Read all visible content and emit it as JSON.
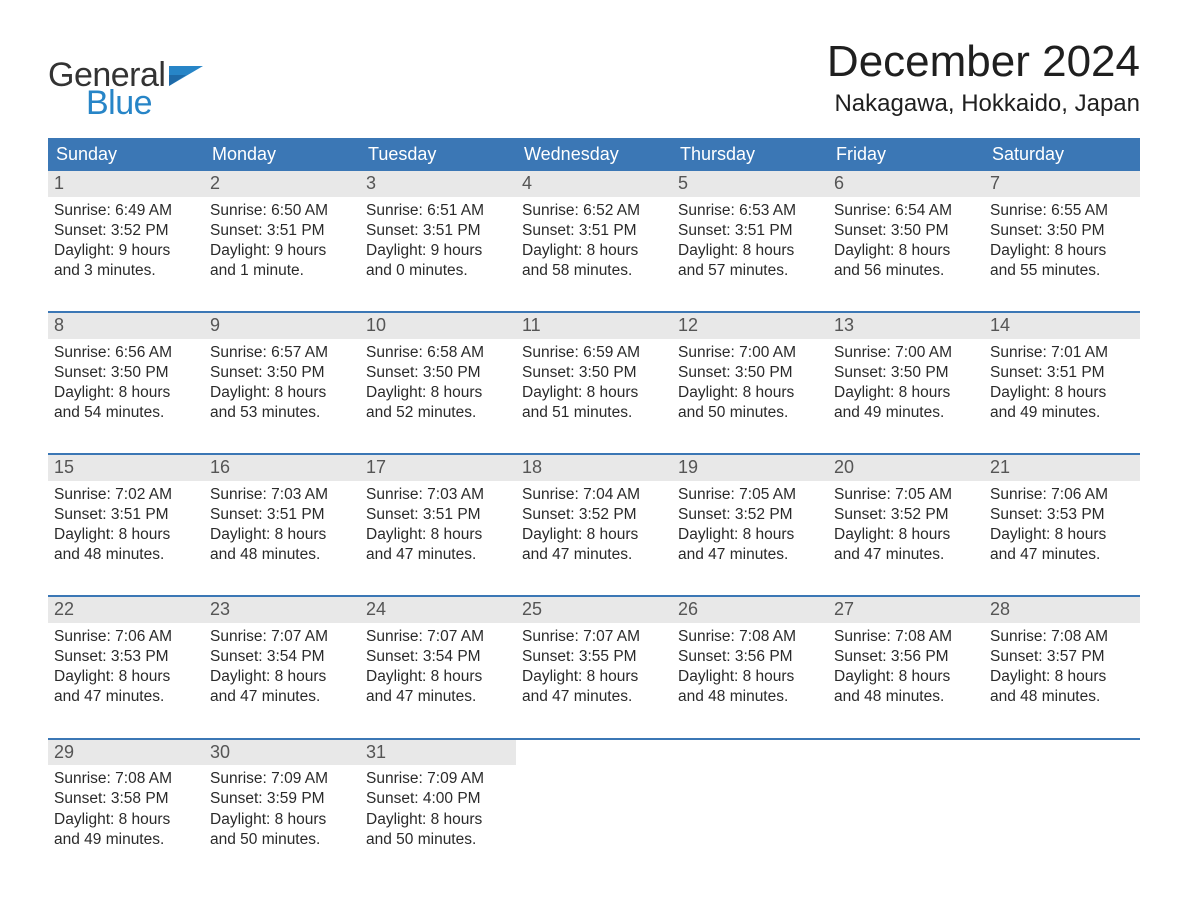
{
  "brand": {
    "word1": "General",
    "word2": "Blue",
    "flag_color": "#2785c7"
  },
  "title": "December 2024",
  "location": "Nakagawa, Hokkaido, Japan",
  "colors": {
    "header_bg": "#3b77b5",
    "header_text": "#ffffff",
    "accent": "#2785c7",
    "daynum_bg": "#e8e8e8",
    "week_border": "#3b77b5",
    "page_bg": "#ffffff",
    "text": "#222222"
  },
  "layout": {
    "columns": 7,
    "rows": 5
  },
  "weekdays": [
    "Sunday",
    "Monday",
    "Tuesday",
    "Wednesday",
    "Thursday",
    "Friday",
    "Saturday"
  ],
  "labels": {
    "sunrise": "Sunrise:",
    "sunset": "Sunset:",
    "daylight": "Daylight:"
  },
  "days": [
    {
      "n": 1,
      "sunrise": "6:49 AM",
      "sunset": "3:52 PM",
      "dl1": "9 hours",
      "dl2": "and 3 minutes."
    },
    {
      "n": 2,
      "sunrise": "6:50 AM",
      "sunset": "3:51 PM",
      "dl1": "9 hours",
      "dl2": "and 1 minute."
    },
    {
      "n": 3,
      "sunrise": "6:51 AM",
      "sunset": "3:51 PM",
      "dl1": "9 hours",
      "dl2": "and 0 minutes."
    },
    {
      "n": 4,
      "sunrise": "6:52 AM",
      "sunset": "3:51 PM",
      "dl1": "8 hours",
      "dl2": "and 58 minutes."
    },
    {
      "n": 5,
      "sunrise": "6:53 AM",
      "sunset": "3:51 PM",
      "dl1": "8 hours",
      "dl2": "and 57 minutes."
    },
    {
      "n": 6,
      "sunrise": "6:54 AM",
      "sunset": "3:50 PM",
      "dl1": "8 hours",
      "dl2": "and 56 minutes."
    },
    {
      "n": 7,
      "sunrise": "6:55 AM",
      "sunset": "3:50 PM",
      "dl1": "8 hours",
      "dl2": "and 55 minutes."
    },
    {
      "n": 8,
      "sunrise": "6:56 AM",
      "sunset": "3:50 PM",
      "dl1": "8 hours",
      "dl2": "and 54 minutes."
    },
    {
      "n": 9,
      "sunrise": "6:57 AM",
      "sunset": "3:50 PM",
      "dl1": "8 hours",
      "dl2": "and 53 minutes."
    },
    {
      "n": 10,
      "sunrise": "6:58 AM",
      "sunset": "3:50 PM",
      "dl1": "8 hours",
      "dl2": "and 52 minutes."
    },
    {
      "n": 11,
      "sunrise": "6:59 AM",
      "sunset": "3:50 PM",
      "dl1": "8 hours",
      "dl2": "and 51 minutes."
    },
    {
      "n": 12,
      "sunrise": "7:00 AM",
      "sunset": "3:50 PM",
      "dl1": "8 hours",
      "dl2": "and 50 minutes."
    },
    {
      "n": 13,
      "sunrise": "7:00 AM",
      "sunset": "3:50 PM",
      "dl1": "8 hours",
      "dl2": "and 49 minutes."
    },
    {
      "n": 14,
      "sunrise": "7:01 AM",
      "sunset": "3:51 PM",
      "dl1": "8 hours",
      "dl2": "and 49 minutes."
    },
    {
      "n": 15,
      "sunrise": "7:02 AM",
      "sunset": "3:51 PM",
      "dl1": "8 hours",
      "dl2": "and 48 minutes."
    },
    {
      "n": 16,
      "sunrise": "7:03 AM",
      "sunset": "3:51 PM",
      "dl1": "8 hours",
      "dl2": "and 48 minutes."
    },
    {
      "n": 17,
      "sunrise": "7:03 AM",
      "sunset": "3:51 PM",
      "dl1": "8 hours",
      "dl2": "and 47 minutes."
    },
    {
      "n": 18,
      "sunrise": "7:04 AM",
      "sunset": "3:52 PM",
      "dl1": "8 hours",
      "dl2": "and 47 minutes."
    },
    {
      "n": 19,
      "sunrise": "7:05 AM",
      "sunset": "3:52 PM",
      "dl1": "8 hours",
      "dl2": "and 47 minutes."
    },
    {
      "n": 20,
      "sunrise": "7:05 AM",
      "sunset": "3:52 PM",
      "dl1": "8 hours",
      "dl2": "and 47 minutes."
    },
    {
      "n": 21,
      "sunrise": "7:06 AM",
      "sunset": "3:53 PM",
      "dl1": "8 hours",
      "dl2": "and 47 minutes."
    },
    {
      "n": 22,
      "sunrise": "7:06 AM",
      "sunset": "3:53 PM",
      "dl1": "8 hours",
      "dl2": "and 47 minutes."
    },
    {
      "n": 23,
      "sunrise": "7:07 AM",
      "sunset": "3:54 PM",
      "dl1": "8 hours",
      "dl2": "and 47 minutes."
    },
    {
      "n": 24,
      "sunrise": "7:07 AM",
      "sunset": "3:54 PM",
      "dl1": "8 hours",
      "dl2": "and 47 minutes."
    },
    {
      "n": 25,
      "sunrise": "7:07 AM",
      "sunset": "3:55 PM",
      "dl1": "8 hours",
      "dl2": "and 47 minutes."
    },
    {
      "n": 26,
      "sunrise": "7:08 AM",
      "sunset": "3:56 PM",
      "dl1": "8 hours",
      "dl2": "and 48 minutes."
    },
    {
      "n": 27,
      "sunrise": "7:08 AM",
      "sunset": "3:56 PM",
      "dl1": "8 hours",
      "dl2": "and 48 minutes."
    },
    {
      "n": 28,
      "sunrise": "7:08 AM",
      "sunset": "3:57 PM",
      "dl1": "8 hours",
      "dl2": "and 48 minutes."
    },
    {
      "n": 29,
      "sunrise": "7:08 AM",
      "sunset": "3:58 PM",
      "dl1": "8 hours",
      "dl2": "and 49 minutes."
    },
    {
      "n": 30,
      "sunrise": "7:09 AM",
      "sunset": "3:59 PM",
      "dl1": "8 hours",
      "dl2": "and 50 minutes."
    },
    {
      "n": 31,
      "sunrise": "7:09 AM",
      "sunset": "4:00 PM",
      "dl1": "8 hours",
      "dl2": "and 50 minutes."
    }
  ]
}
